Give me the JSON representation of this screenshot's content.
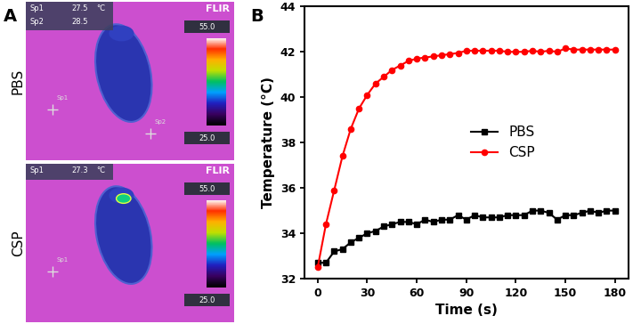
{
  "panel_labels": [
    "A",
    "B"
  ],
  "thermal_images": [
    {
      "row_label": "PBS",
      "brand": "FLIR",
      "unit": "°C",
      "readouts": [
        {
          "name": "Sp1",
          "value": 27.5
        },
        {
          "name": "Sp2",
          "value": 28.5
        }
      ],
      "markers": [
        "Sp1",
        "Sp2"
      ],
      "scale_max": 55.0,
      "scale_min": 25.0
    },
    {
      "row_label": "CSP",
      "brand": "FLIR",
      "unit": "°C",
      "readouts": [
        {
          "name": "Sp1",
          "value": 27.3
        }
      ],
      "markers": [
        "Sp1"
      ],
      "scale_max": 55.0,
      "scale_min": 25.0
    }
  ],
  "chart_data": {
    "type": "line",
    "x_label": "Time (s)",
    "y_label": "Temperature (°C)",
    "x": [
      0,
      5,
      10,
      15,
      20,
      25,
      30,
      35,
      40,
      45,
      50,
      55,
      60,
      65,
      70,
      75,
      80,
      85,
      90,
      95,
      100,
      105,
      110,
      115,
      120,
      125,
      130,
      135,
      140,
      145,
      150,
      155,
      160,
      165,
      170,
      175,
      180
    ],
    "series": [
      {
        "name": "PBS",
        "color": "#000000",
        "marker": "square",
        "line_style": "solid",
        "values": [
          32.7,
          32.7,
          33.2,
          33.3,
          33.6,
          33.8,
          34.0,
          34.1,
          34.3,
          34.4,
          34.5,
          34.5,
          34.4,
          34.6,
          34.5,
          34.6,
          34.6,
          34.8,
          34.6,
          34.8,
          34.7,
          34.7,
          34.7,
          34.8,
          34.8,
          34.8,
          35.0,
          35.0,
          34.9,
          34.6,
          34.8,
          34.8,
          34.9,
          35.0,
          34.9,
          35.0,
          35.0
        ]
      },
      {
        "name": "CSP",
        "color": "#ff0000",
        "marker": "circle",
        "line_style": "solid",
        "values": [
          32.5,
          34.4,
          35.9,
          37.4,
          38.6,
          39.5,
          40.1,
          40.6,
          40.9,
          41.2,
          41.4,
          41.6,
          41.7,
          41.75,
          41.8,
          41.85,
          41.9,
          41.95,
          42.05,
          42.05,
          42.05,
          42.05,
          42.05,
          42.0,
          42.0,
          42.0,
          42.05,
          42.0,
          42.05,
          42.0,
          42.15,
          42.1,
          42.1,
          42.1,
          42.1,
          42.1,
          42.1
        ]
      }
    ],
    "xlim": [
      -8,
      188
    ],
    "xticks": [
      0,
      30,
      60,
      90,
      120,
      150,
      180
    ],
    "ylim": [
      32,
      44
    ],
    "yticks": [
      32,
      34,
      36,
      38,
      40,
      42,
      44
    ],
    "legend": "center right",
    "grid": false
  }
}
